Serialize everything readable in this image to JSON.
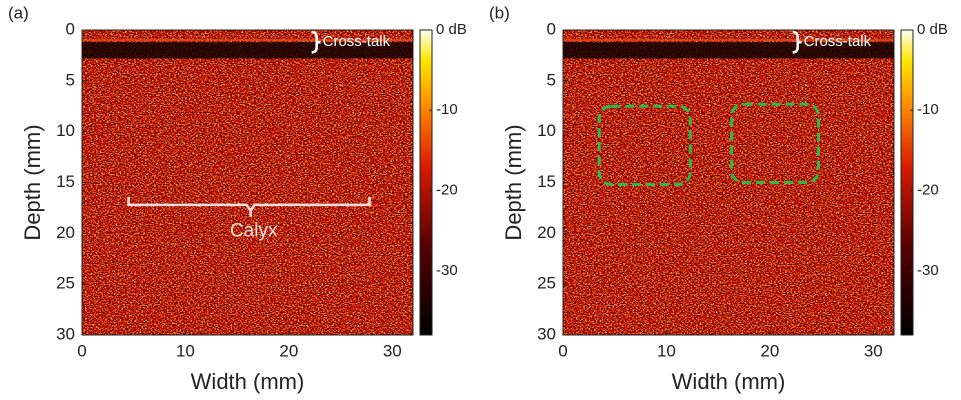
{
  "chart_data": [
    {
      "type": "image",
      "panel_label": "(a)",
      "xlabel": "Width (mm)",
      "ylabel": "Depth (mm)",
      "xlim": [
        0,
        32
      ],
      "xticks": [
        0,
        10,
        20,
        30
      ],
      "ylim": [
        0,
        30
      ],
      "yticks": [
        0,
        5,
        10,
        15,
        20,
        25,
        30
      ],
      "y_reversed": true,
      "colorbar": {
        "clim": [
          -38,
          0
        ],
        "ticks": [
          {
            "value": 0,
            "label": "0 dB"
          },
          -10,
          -20,
          -30
        ]
      },
      "annotations": [
        "Cross-talk",
        "Calyx"
      ]
    },
    {
      "type": "image",
      "panel_label": "(b)",
      "xlabel": "Width (mm)",
      "ylabel": "Depth (mm)",
      "xlim": [
        0,
        32
      ],
      "xticks": [
        0,
        10,
        20,
        30
      ],
      "ylim": [
        0,
        30
      ],
      "yticks": [
        0,
        5,
        10,
        15,
        20,
        25,
        30
      ],
      "y_reversed": true,
      "colorbar": {
        "clim": [
          -38,
          0
        ],
        "ticks": [
          {
            "value": 0,
            "label": "0 dB"
          },
          -10,
          -20,
          -30
        ]
      },
      "annotations": [
        "Cross-talk"
      ]
    }
  ]
}
